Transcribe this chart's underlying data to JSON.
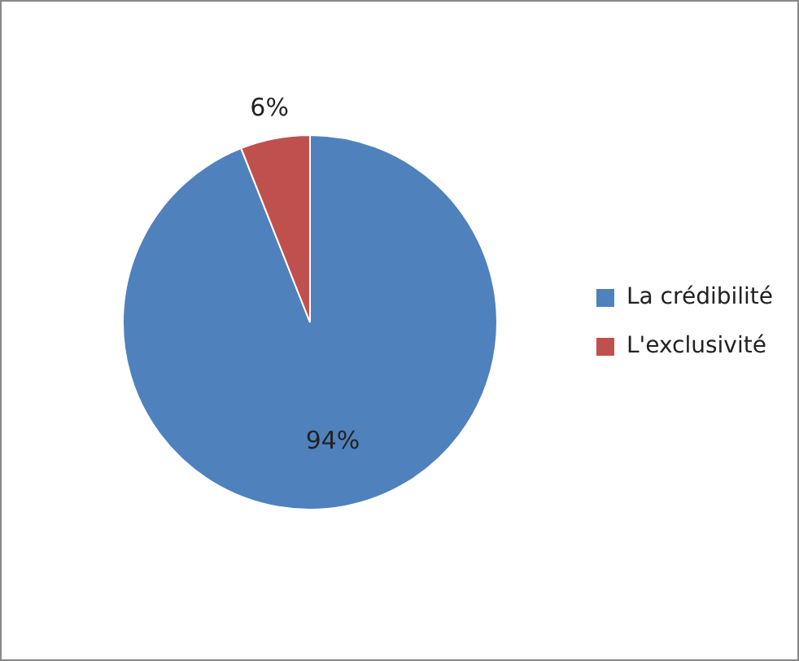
{
  "chart_data": {
    "type": "pie",
    "categories": [
      "La crédibilité",
      "L'exclusivité"
    ],
    "values": [
      94,
      6
    ],
    "colors": [
      "#4f81bd",
      "#c0504d"
    ],
    "value_labels": [
      "94%",
      "6%"
    ],
    "legend": "right"
  }
}
